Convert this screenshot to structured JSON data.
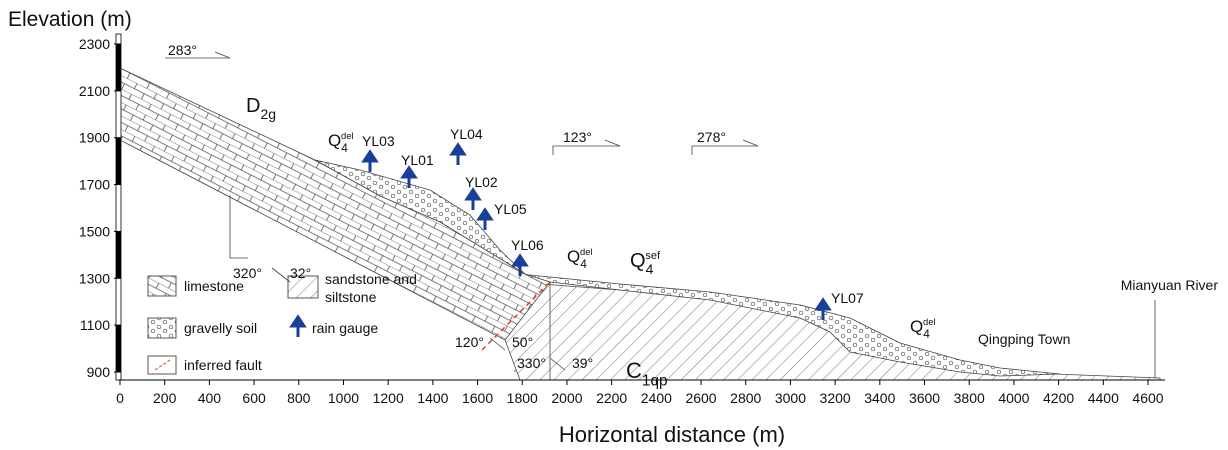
{
  "axes": {
    "y_label": "Elevation (m)",
    "x_label": "Horizontal distance (m)",
    "yticks": [
      900,
      1100,
      1300,
      1500,
      1700,
      1900,
      2100,
      2300
    ],
    "xticks": [
      0,
      200,
      400,
      600,
      800,
      1000,
      1200,
      1400,
      1600,
      1800,
      2000,
      2200,
      2400,
      2600,
      2800,
      3000,
      3200,
      3400,
      3600,
      3800,
      4000,
      4200,
      4400,
      4600
    ]
  },
  "units": [
    {
      "base": "D",
      "sub": "2g"
    },
    {
      "base": "Q",
      "sub": "4",
      "sup": "del"
    },
    {
      "base": "Q",
      "sub": "4",
      "sup": "del"
    },
    {
      "base": "Q",
      "sub": "4",
      "sup": "sef"
    },
    {
      "base": "C",
      "sub": "1qp"
    },
    {
      "base": "Q",
      "sub": "4",
      "sup": "del"
    }
  ],
  "orientations": [
    "283°",
    "320°",
    "32°",
    "123°",
    "278°",
    "120°",
    "50°",
    "330°",
    "39°"
  ],
  "gauges": [
    "YL03",
    "YL04",
    "YL01",
    "YL02",
    "YL05",
    "YL06",
    "YL07"
  ],
  "legend": {
    "limestone": "limestone",
    "sandstone": [
      "sandstone and",
      "siltstone"
    ],
    "gravel": "gravelly soil",
    "gauge": "rain gauge",
    "fault": "inferred fault"
  },
  "places": [
    "Mianyuan River",
    "Qingping Town"
  ]
}
